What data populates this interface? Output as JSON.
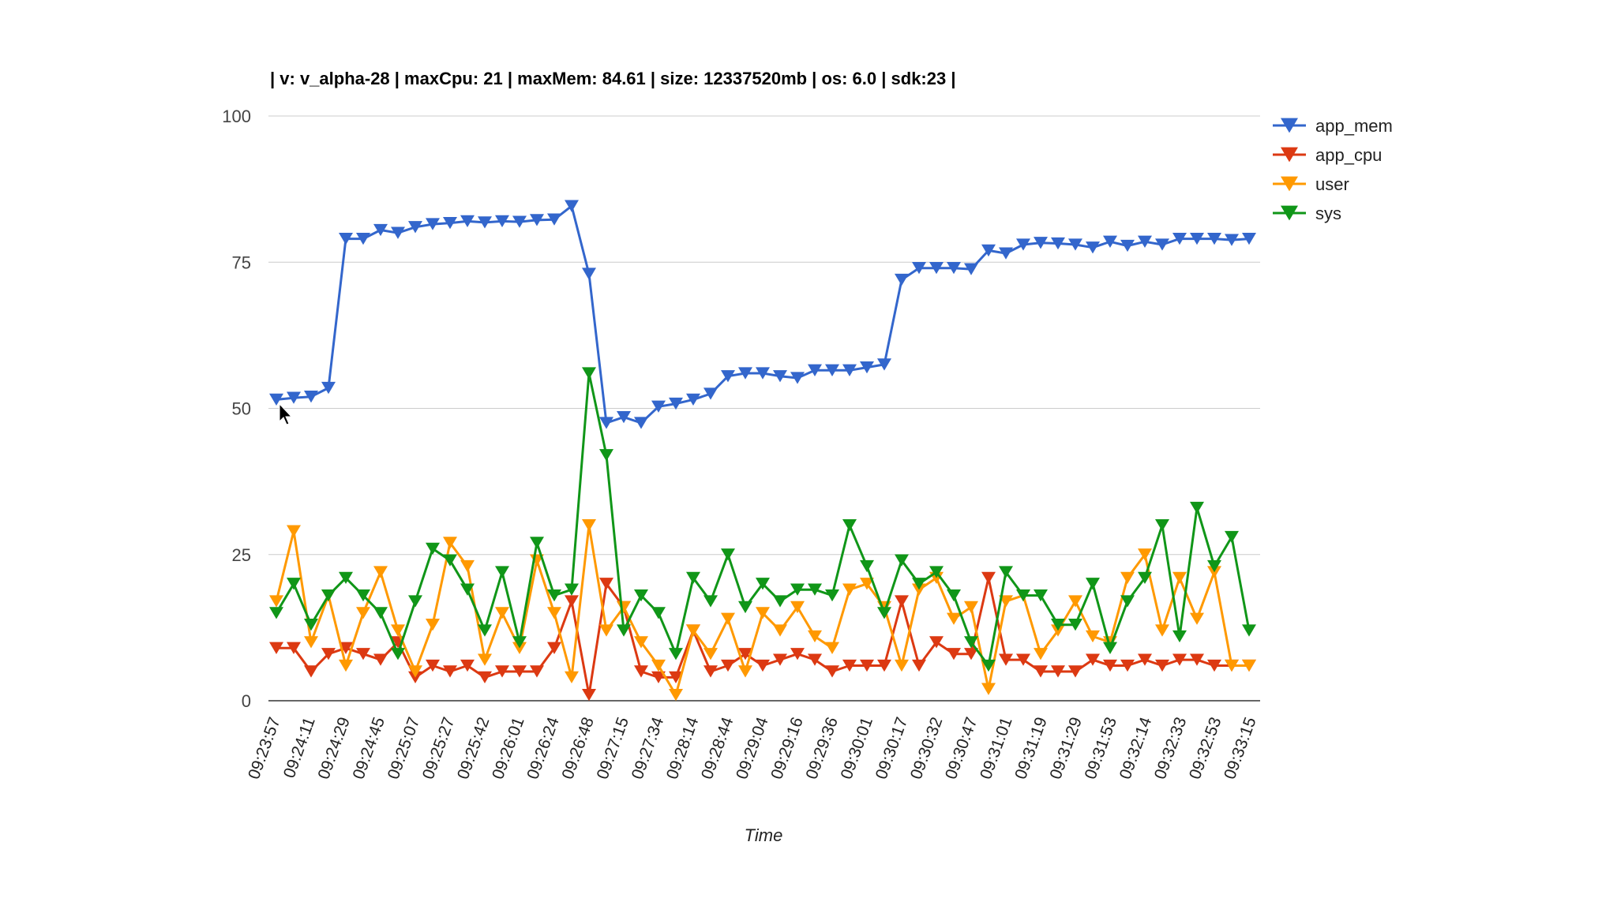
{
  "chart_data": {
    "type": "line",
    "title": "| v: v_alpha-28 | maxCpu: 21 | maxMem: 84.61 | size: 12337520mb | os: 6.0 | sdk:23 |",
    "xlabel": "Time",
    "ylabel": "",
    "ylim": [
      0,
      100
    ],
    "yticks": [
      "0",
      "25",
      "50",
      "75",
      "100"
    ],
    "grid": true,
    "legend": "right",
    "marker": "triangle-down",
    "x_tick_labels": [
      "09:23:57",
      "09:24:11",
      "09:24:29",
      "09:24:45",
      "09:25:07",
      "09:25:27",
      "09:25:42",
      "09:26:01",
      "09:26:24",
      "09:26:48",
      "09:27:15",
      "09:27:34",
      "09:28:14",
      "09:28:44",
      "09:29:04",
      "09:29:16",
      "09:29:36",
      "09:30:01",
      "09:30:17",
      "09:30:32",
      "09:30:47",
      "09:31:01",
      "09:31:19",
      "09:31:29",
      "09:31:53",
      "09:32:14",
      "09:32:33",
      "09:32:53",
      "09:33:15"
    ],
    "series": [
      {
        "name": "app_mem",
        "color": "#3366cc",
        "values": [
          51.5,
          51.8,
          52,
          53.5,
          79,
          79,
          80.5,
          80,
          81,
          81.5,
          81.7,
          82,
          81.8,
          82,
          81.9,
          82.2,
          82.3,
          84.6,
          73,
          47.5,
          48.5,
          47.5,
          50.3,
          50.8,
          51.5,
          52.5,
          55.5,
          56,
          56,
          55.5,
          55.2,
          56.5,
          56.5,
          56.5,
          57,
          57.5,
          72,
          74,
          74,
          74,
          73.8,
          77,
          76.5,
          78,
          78.3,
          78.2,
          78,
          77.5,
          78.5,
          77.8,
          78.5,
          78,
          79,
          79,
          79,
          78.8,
          79
        ]
      },
      {
        "name": "app_cpu",
        "color": "#dc3912",
        "values": [
          9,
          9,
          5,
          8,
          9,
          8,
          7,
          10,
          4,
          6,
          5,
          6,
          4,
          5,
          5,
          5,
          9,
          17,
          1,
          20,
          16,
          5,
          4,
          4,
          12,
          5,
          6,
          8,
          6,
          7,
          8,
          7,
          5,
          6,
          6,
          6,
          17,
          6,
          10,
          8,
          8,
          21,
          7,
          7,
          5,
          5,
          5,
          7,
          6,
          6,
          7,
          6,
          7,
          7,
          6,
          6,
          6
        ]
      },
      {
        "name": "user",
        "color": "#ff9900",
        "values": [
          17,
          29,
          10,
          18,
          6,
          15,
          22,
          12,
          5,
          13,
          27,
          23,
          7,
          15,
          9,
          24,
          15,
          4,
          30,
          12,
          16,
          10,
          6,
          1,
          12,
          8,
          14,
          5,
          15,
          12,
          16,
          11,
          9,
          19,
          20,
          16,
          6,
          19,
          21,
          14,
          16,
          2,
          17,
          18,
          8,
          12,
          17,
          11,
          10,
          21,
          25,
          12,
          21,
          14,
          22,
          6,
          6
        ]
      },
      {
        "name": "sys",
        "color": "#109618",
        "values": [
          15,
          20,
          13,
          18,
          21,
          18,
          15,
          8,
          17,
          26,
          24,
          19,
          12,
          22,
          10,
          27,
          18,
          19,
          56,
          42,
          12,
          18,
          15,
          8,
          21,
          17,
          25,
          16,
          20,
          17,
          19,
          19,
          18,
          30,
          23,
          15,
          24,
          20,
          22,
          18,
          10,
          6,
          22,
          18,
          18,
          13,
          13,
          20,
          9,
          17,
          21,
          30,
          11,
          33,
          23,
          28,
          12
        ]
      }
    ]
  }
}
